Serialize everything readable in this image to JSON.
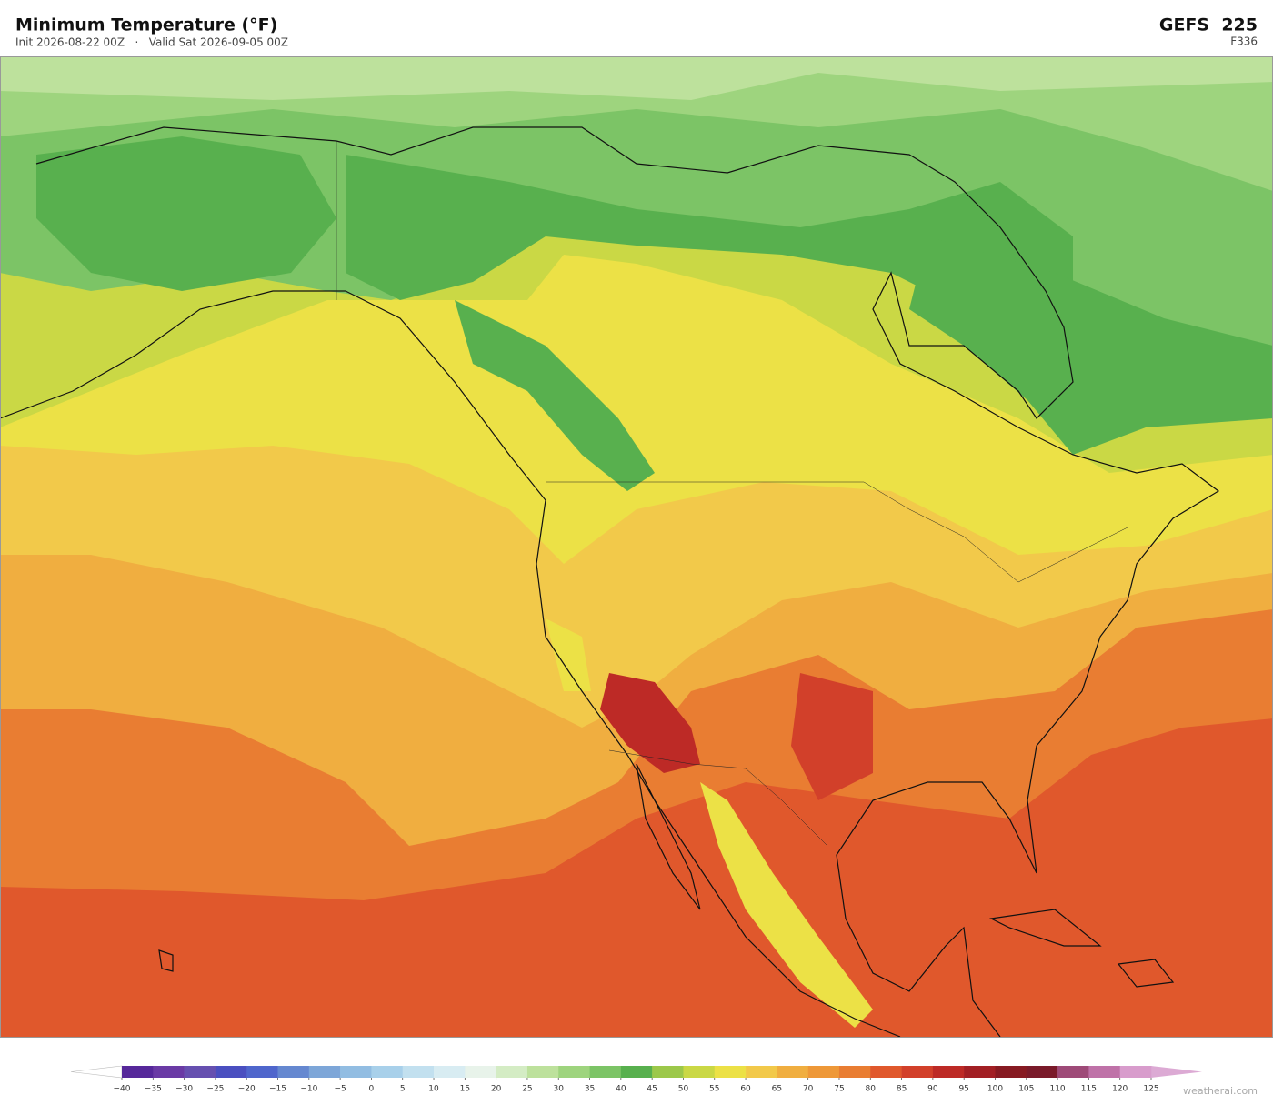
{
  "header": {
    "title": "Minimum Temperature  (°F)",
    "subtitle": "Init 2026-08-22 00Z   ·   Valid Sat 2026-09-05 00Z",
    "model": "GEFS  225",
    "forecast_hour": "F336"
  },
  "colorbar": {
    "ticks": [
      {
        "value": -40,
        "label": "−40"
      },
      {
        "value": -35,
        "label": "−35"
      },
      {
        "value": -30,
        "label": "−30"
      },
      {
        "value": -25,
        "label": "−25"
      },
      {
        "value": -20,
        "label": "−20"
      },
      {
        "value": -15,
        "label": "−15"
      },
      {
        "value": -10,
        "label": "−10"
      },
      {
        "value": -5,
        "label": "−5"
      },
      0,
      5,
      10,
      15,
      20,
      25,
      30,
      35,
      40,
      45,
      50,
      55,
      60,
      65,
      70,
      75,
      80,
      85,
      90,
      95,
      100,
      105,
      110,
      115,
      120,
      125
    ],
    "colors": [
      "#56289a",
      "#6a3aa5",
      "#6650b0",
      "#4a4fc0",
      "#4f66cc",
      "#6588d0",
      "#7da6d8",
      "#92bde2",
      "#a8d0ea",
      "#c2e0ef",
      "#d8ecf2",
      "#e8f3ea",
      "#d4ecc4",
      "#bde19c",
      "#9ed47e",
      "#7cc466",
      "#58b04e",
      "#9cc84a",
      "#cad845",
      "#ece146",
      "#f2c94a",
      "#f0ae40",
      "#ee9838",
      "#e97d32",
      "#e0582c",
      "#d2402a",
      "#bd2a26",
      "#a21f24",
      "#871a22",
      "#7a1a2a",
      "#9e4a78",
      "#bf72a8",
      "#d89ccc"
    ],
    "under_color": "#ffffff",
    "over_color": "#dcaad4"
  },
  "credit": "weatherai.com"
}
